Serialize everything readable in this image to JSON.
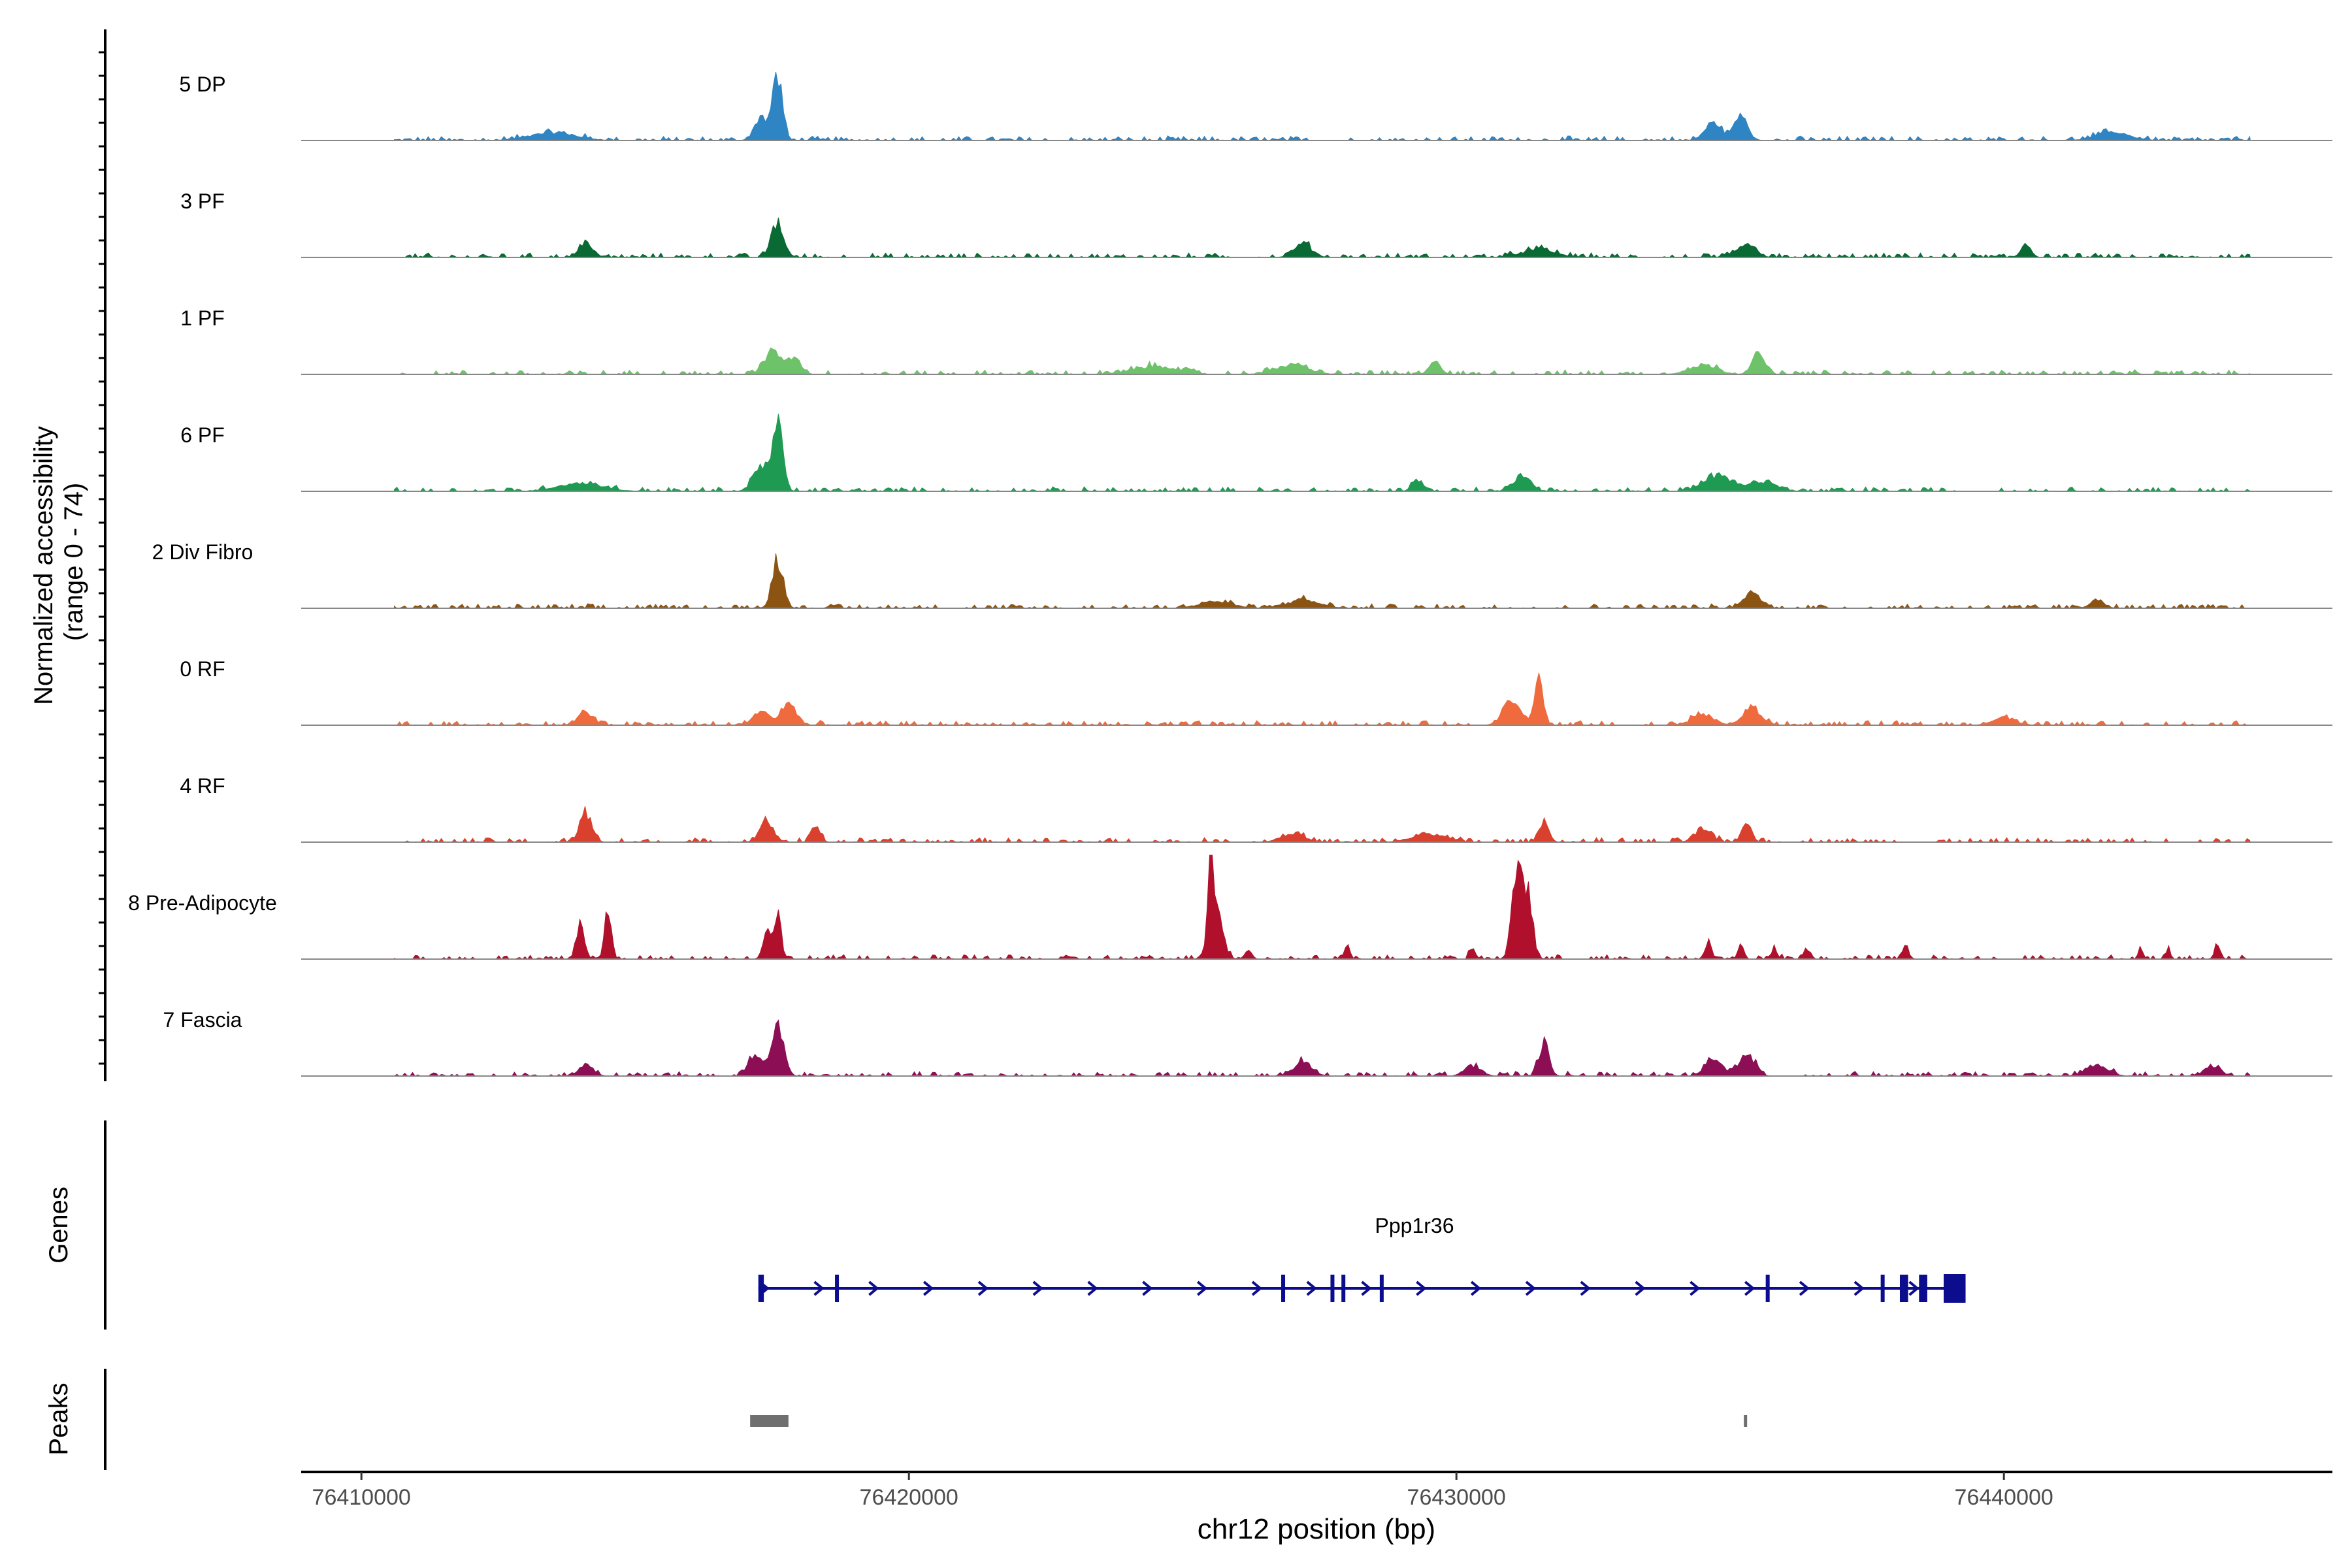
{
  "chart_data": {
    "type": "area",
    "title": "",
    "y_axis_label_line1": "Normalized accessibility",
    "y_axis_label_line2": "(range 0 - 74)",
    "y_range": [
      0,
      74
    ],
    "xlabel": "chr12 position (bp)",
    "x_range": [
      76408900,
      76446000
    ],
    "x_ticks": [
      {
        "value": 76410000,
        "label": "76410000"
      },
      {
        "value": 76420000,
        "label": "76420000"
      },
      {
        "value": 76430000,
        "label": "76430000"
      },
      {
        "value": 76440000,
        "label": "76440000"
      }
    ],
    "tracks": [
      {
        "name": "5 DP",
        "color": "#2f85c4",
        "peaks": [
          [
            76417600,
            47,
            90
          ],
          [
            76417300,
            18,
            120
          ],
          [
            76434700,
            13,
            160
          ],
          [
            76435200,
            18,
            120
          ],
          [
            76413500,
            6,
            400
          ],
          [
            76442000,
            6,
            300
          ]
        ]
      },
      {
        "name": "3 PF",
        "color": "#0a6a34",
        "peaks": [
          [
            76417600,
            27,
            110
          ],
          [
            76414100,
            12,
            120
          ],
          [
            76427200,
            10,
            160
          ],
          [
            76435300,
            9,
            160
          ],
          [
            76440400,
            10,
            90
          ],
          [
            76431500,
            6,
            300
          ]
        ]
      },
      {
        "name": "1 PF",
        "color": "#6dc26a",
        "peaks": [
          [
            76417500,
            18,
            140
          ],
          [
            76417900,
            13,
            120
          ],
          [
            76429600,
            10,
            100
          ],
          [
            76435500,
            16,
            110
          ],
          [
            76434500,
            7,
            250
          ],
          [
            76424500,
            6,
            400
          ],
          [
            76427000,
            7,
            300
          ]
        ]
      },
      {
        "name": "6 PF",
        "color": "#1e9a52",
        "peaks": [
          [
            76417600,
            52,
            90
          ],
          [
            76417300,
            20,
            140
          ],
          [
            76431200,
            12,
            150
          ],
          [
            76434800,
            11,
            280
          ],
          [
            76429300,
            9,
            100
          ],
          [
            76435600,
            7,
            250
          ],
          [
            76414000,
            6,
            400
          ]
        ]
      },
      {
        "name": "2 Div Fibro",
        "color": "#8b5413",
        "peaks": [
          [
            76417600,
            36,
            100
          ],
          [
            76435400,
            12,
            150
          ],
          [
            76427200,
            6,
            300
          ],
          [
            76441700,
            7,
            120
          ],
          [
            76425600,
            5,
            300
          ]
        ]
      },
      {
        "name": "0 RF",
        "color": "#ef6a3c",
        "peaks": [
          [
            76431500,
            34,
            80
          ],
          [
            76431000,
            20,
            150
          ],
          [
            76417800,
            16,
            140
          ],
          [
            76417300,
            11,
            140
          ],
          [
            76414100,
            10,
            130
          ],
          [
            76435400,
            13,
            160
          ],
          [
            76434500,
            8,
            200
          ],
          [
            76440000,
            6,
            200
          ]
        ]
      },
      {
        "name": "4 RF",
        "color": "#d9402d",
        "peaks": [
          [
            76414100,
            22,
            110
          ],
          [
            76417400,
            15,
            130
          ],
          [
            76418300,
            13,
            80
          ],
          [
            76431600,
            14,
            90
          ],
          [
            76435300,
            14,
            90
          ],
          [
            76434500,
            10,
            150
          ],
          [
            76427000,
            7,
            200
          ],
          [
            76429500,
            6,
            300
          ]
        ]
      },
      {
        "name": "8 Pre-Adipocyte",
        "color": "#b0102c",
        "peaks": [
          [
            76425500,
            72,
            40
          ],
          [
            76425600,
            40,
            120
          ],
          [
            76431100,
            60,
            90
          ],
          [
            76431300,
            50,
            90
          ],
          [
            76414000,
            30,
            70
          ],
          [
            76414500,
            36,
            60
          ],
          [
            76417400,
            22,
            70
          ],
          [
            76417600,
            34,
            60
          ],
          [
            76434600,
            14,
            60
          ],
          [
            76435200,
            12,
            50
          ],
          [
            76428000,
            11,
            50
          ],
          [
            76438200,
            12,
            50
          ],
          [
            76443900,
            13,
            50
          ],
          [
            76442500,
            9,
            40
          ],
          [
            76426200,
            8,
            60
          ],
          [
            76430300,
            9,
            50
          ],
          [
            76435800,
            7,
            60
          ],
          [
            76436400,
            7,
            60
          ],
          [
            76443000,
            8,
            40
          ]
        ]
      },
      {
        "name": "7 Fascia",
        "color": "#8c0f55",
        "peaks": [
          [
            76417600,
            40,
            110
          ],
          [
            76417200,
            18,
            120
          ],
          [
            76431600,
            26,
            90
          ],
          [
            76435300,
            17,
            140
          ],
          [
            76434700,
            13,
            160
          ],
          [
            76427200,
            11,
            160
          ],
          [
            76414100,
            9,
            130
          ],
          [
            76430300,
            8,
            150
          ],
          [
            76441700,
            8,
            200
          ],
          [
            76443800,
            7,
            150
          ]
        ]
      }
    ],
    "genes_label": "Genes",
    "gene": {
      "name": "Ppp1r36",
      "color": "#0c0c8e",
      "start": 76417250,
      "end": 76439300,
      "strand": "+",
      "exons": [
        [
          76417250,
          76417350
        ],
        [
          76418650,
          76418700
        ],
        [
          76426800,
          76426860
        ],
        [
          76427700,
          76427760
        ],
        [
          76427900,
          76427960
        ],
        [
          76428600,
          76428660
        ],
        [
          76435650,
          76435720
        ],
        [
          76437750,
          76437800
        ],
        [
          76438100,
          76438250
        ],
        [
          76438450,
          76438600
        ],
        [
          76438900,
          76439300
        ]
      ]
    },
    "peaks_label": "Peaks",
    "called_peaks": [
      [
        76417100,
        76417800
      ],
      [
        76435250,
        76435310
      ]
    ]
  }
}
